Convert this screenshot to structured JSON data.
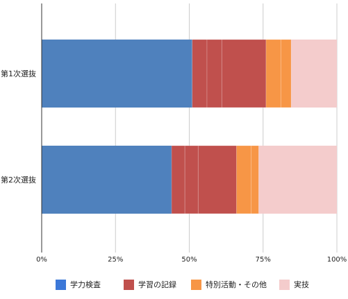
{
  "chart_data": {
    "type": "bar",
    "orientation": "horizontal",
    "stacked": "percent",
    "categories": [
      "第1次選抜",
      "第2次選抜"
    ],
    "series": [
      {
        "name": "学力検査",
        "values": [
          51,
          44
        ],
        "color": "#4f81bd",
        "segments": [
          [
            51
          ],
          [
            44
          ]
        ]
      },
      {
        "name": "学習の記録",
        "values": [
          25,
          22
        ],
        "color": "#c0504d",
        "segments": [
          [
            5,
            5,
            15
          ],
          [
            4.5,
            4.5,
            13
          ]
        ]
      },
      {
        "name": "特別活動・その他",
        "values": [
          8.5,
          7.5
        ],
        "color": "#f79646",
        "segments": [
          [
            5,
            3.5
          ],
          [
            5,
            2.5
          ]
        ]
      },
      {
        "name": "実技",
        "values": [
          15.5,
          26.5
        ],
        "color": "#f4cccc",
        "segments": [
          [
            15.5
          ],
          [
            26.5
          ]
        ]
      }
    ],
    "xlim": [
      0,
      100
    ],
    "xticks": [
      "0%",
      "25%",
      "50%",
      "75%",
      "100%"
    ],
    "grid": true,
    "legend": "bottom"
  }
}
